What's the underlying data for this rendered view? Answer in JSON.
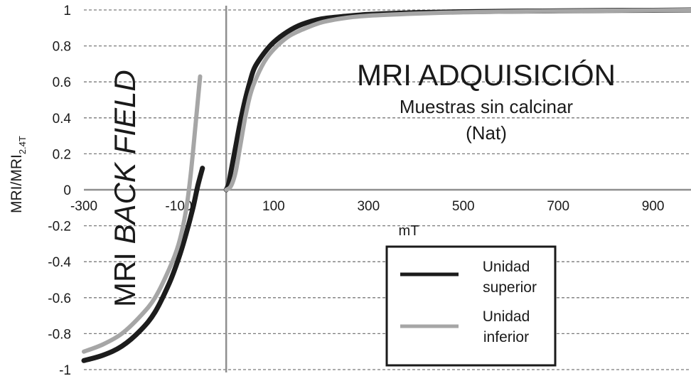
{
  "chart_data": {
    "type": "line",
    "ylabel_main": "MRI/MRI",
    "ylabel_sub": "2.4T",
    "xlabel": "mT",
    "annotations": {
      "adquisicion_title": "MRI ADQUISICIÓN",
      "adquisicion_subtitle_1": "Muestras sin calcinar",
      "adquisicion_subtitle_2": "(Nat)",
      "backfield_title_1": "MRI ",
      "backfield_title_2": "BACK FIELD"
    },
    "xlim": [
      -300,
      980
    ],
    "ylim": [
      -1,
      1
    ],
    "x_ticks": [
      "-300",
      "-100",
      "100",
      "300",
      "500",
      "700",
      "900"
    ],
    "x_tick_values": [
      -300,
      -100,
      100,
      300,
      500,
      700,
      900
    ],
    "y_ticks": [
      "-1",
      "-0.8",
      "-0.6",
      "-0.4",
      "-0.2",
      "0",
      "0.2",
      "0.4",
      "0.6",
      "0.8",
      "1"
    ],
    "y_tick_values": [
      -1,
      -0.8,
      -0.6,
      -0.4,
      -0.2,
      0,
      0.2,
      0.4,
      0.6,
      0.8,
      1
    ],
    "grid": "horizontal-dashed",
    "legend_position": "bottom-right",
    "series": [
      {
        "name": "Unidad superior",
        "color": "#1c1c1c",
        "width": 7,
        "backfield": {
          "x": [
            -300,
            -260,
            -220,
            -180,
            -150,
            -120,
            -100,
            -85,
            -70,
            -60,
            -50
          ],
          "y": [
            -0.95,
            -0.92,
            -0.87,
            -0.78,
            -0.68,
            -0.52,
            -0.38,
            -0.25,
            -0.1,
            0.02,
            0.12
          ]
        },
        "acquisition": {
          "x": [
            0,
            5,
            10,
            20,
            30,
            40,
            50,
            60,
            80,
            100,
            130,
            160,
            200,
            250,
            300,
            400,
            500,
            600,
            700,
            800,
            900,
            980
          ],
          "y": [
            0,
            0.03,
            0.1,
            0.24,
            0.38,
            0.5,
            0.6,
            0.68,
            0.76,
            0.82,
            0.88,
            0.92,
            0.95,
            0.965,
            0.975,
            0.985,
            0.99,
            0.993,
            0.995,
            0.997,
            0.998,
            1.0
          ]
        }
      },
      {
        "name": "Unidad inferior",
        "color": "#a6a6a6",
        "width": 6,
        "backfield": {
          "x": [
            -300,
            -260,
            -220,
            -180,
            -150,
            -120,
            -100,
            -85,
            -75,
            -65,
            -55
          ],
          "y": [
            -0.9,
            -0.86,
            -0.8,
            -0.7,
            -0.6,
            -0.44,
            -0.3,
            -0.12,
            0.08,
            0.35,
            0.63
          ]
        },
        "acquisition": {
          "x": [
            0,
            10,
            20,
            30,
            40,
            50,
            60,
            80,
            100,
            130,
            160,
            200,
            250,
            300,
            400,
            500,
            600,
            700,
            800,
            900,
            980
          ],
          "y": [
            0,
            0.02,
            0.1,
            0.25,
            0.4,
            0.52,
            0.6,
            0.71,
            0.78,
            0.85,
            0.89,
            0.93,
            0.955,
            0.968,
            0.98,
            0.987,
            0.991,
            0.994,
            0.996,
            0.998,
            1.0
          ]
        }
      }
    ]
  },
  "legend": {
    "items": [
      {
        "label_1": "Unidad",
        "label_2": "superior"
      },
      {
        "label_1": "Unidad",
        "label_2": "inferior"
      }
    ]
  }
}
